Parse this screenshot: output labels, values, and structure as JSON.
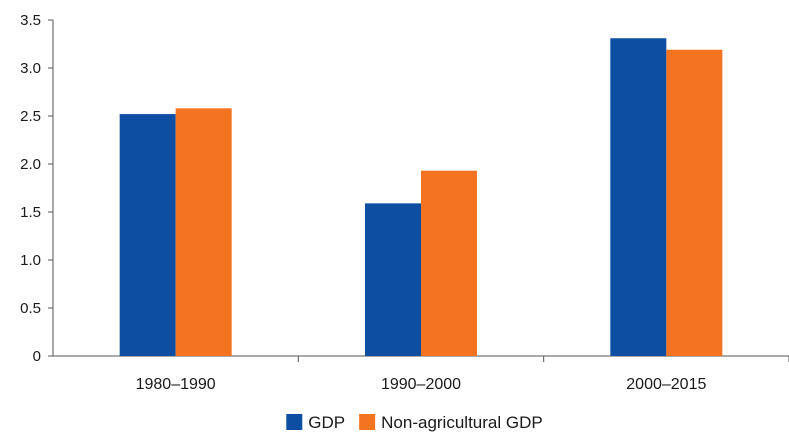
{
  "chart_data": {
    "type": "bar",
    "title": "",
    "xlabel": "",
    "ylabel": "",
    "categories": [
      "1980–1990",
      "1990–2000",
      "2000–2015"
    ],
    "series": [
      {
        "name": "GDP",
        "color": "#0d4ea2",
        "values": [
          2.52,
          1.59,
          3.31
        ]
      },
      {
        "name": "Non-agricultural GDP",
        "color": "#f47321",
        "values": [
          2.58,
          1.93,
          3.19
        ]
      }
    ],
    "ylim": [
      0,
      3.5
    ],
    "yticks": [
      "0",
      "0.5",
      "1.0",
      "1.5",
      "2.0",
      "2.5",
      "3.0",
      "3.5"
    ],
    "grid": false,
    "legend_position": "bottom-center"
  }
}
